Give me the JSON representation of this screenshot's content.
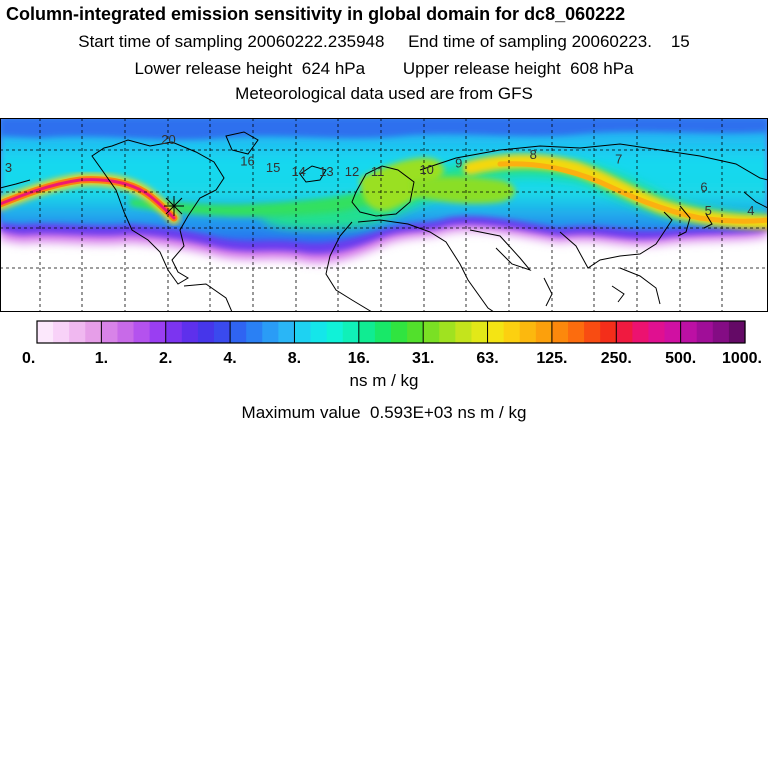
{
  "title": "Column-integrated emission sensitivity in global domain for dc8_060222",
  "sampling": {
    "start_label": "Start time of sampling",
    "start_value": "20060222.235948",
    "end_label": "End time of sampling",
    "end_value": "20060223.    15"
  },
  "release": {
    "lower_label": "Lower release height",
    "lower_value": "624 hPa",
    "upper_label": "Upper release height",
    "upper_value": "608 hPa"
  },
  "met_note": "Meteorological data used are from GFS",
  "colorbar": {
    "tick_labels": [
      "0.",
      "1.",
      "2.",
      "4.",
      "8.",
      "16.",
      "31.",
      "63.",
      "125.",
      "250.",
      "500.",
      "1000."
    ],
    "colors": [
      "#fce8fc",
      "#f8d2f8",
      "#f0b8f0",
      "#e69ee8",
      "#d883e8",
      "#c86ae8",
      "#b452ee",
      "#9a3ef2",
      "#7c34f0",
      "#5e30ec",
      "#4636ea",
      "#3a4aee",
      "#2f64f2",
      "#2a80f4",
      "#2a9cf6",
      "#2ab6f6",
      "#1ed2f2",
      "#14e6ea",
      "#10f2d8",
      "#10f0b8",
      "#10ec92",
      "#18e868",
      "#30e440",
      "#52e02c",
      "#7ae024",
      "#a0e220",
      "#c4e41c",
      "#e2e818",
      "#f4e414",
      "#fcd010",
      "#fcb80e",
      "#fca00c",
      "#fc880c",
      "#fc6c0e",
      "#f84c12",
      "#f42e1a",
      "#f01a40",
      "#ec1270",
      "#e01090",
      "#d010a2",
      "#bc10a4",
      "#a00e98",
      "#840c84",
      "#640a66"
    ],
    "units": "ns m / kg"
  },
  "max_value": {
    "label": "Maximum value",
    "value": "0.593E+03 ns m / kg"
  },
  "map": {
    "contour_labels": [
      {
        "text": "3",
        "lon": -176,
        "lat": 45
      },
      {
        "text": "20",
        "lon": -101,
        "lat": 58
      },
      {
        "text": "16",
        "lon": -64,
        "lat": 48
      },
      {
        "text": "15",
        "lon": -52,
        "lat": 45
      },
      {
        "text": "14",
        "lon": -40,
        "lat": 43
      },
      {
        "text": "13",
        "lon": -27,
        "lat": 43
      },
      {
        "text": "12",
        "lon": -15,
        "lat": 43
      },
      {
        "text": "11",
        "lon": -3,
        "lat": 43
      },
      {
        "text": "10",
        "lon": 20,
        "lat": 44
      },
      {
        "text": "9",
        "lon": 35,
        "lat": 47
      },
      {
        "text": "8",
        "lon": 70,
        "lat": 51
      },
      {
        "text": "7",
        "lon": 110,
        "lat": 49
      },
      {
        "text": "6",
        "lon": 150,
        "lat": 36
      },
      {
        "text": "5",
        "lon": 152,
        "lat": 25
      },
      {
        "text": "4",
        "lon": 172,
        "lat": 25
      }
    ]
  }
}
